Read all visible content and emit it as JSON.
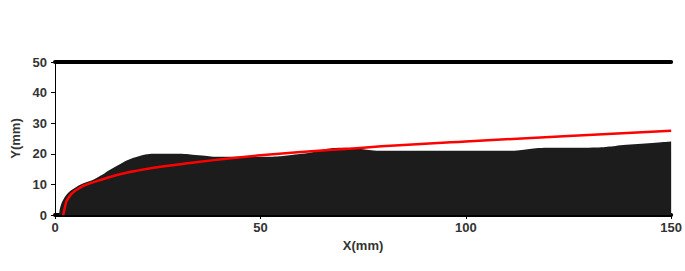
{
  "chart_data": {
    "type": "line",
    "x_label": "X(mm)",
    "y_label": "Y(mm)",
    "xlim": [
      0,
      150
    ],
    "ylim": [
      0,
      50
    ],
    "xticks": [
      0,
      50,
      100,
      150
    ],
    "yticks": [
      0,
      10,
      20,
      30,
      40,
      50
    ],
    "grid": false,
    "series": [
      {
        "type": "area",
        "color": "#1c1c1c",
        "x": [
          1,
          2,
          5,
          10,
          15,
          20,
          25,
          30,
          35,
          40,
          50,
          60,
          70,
          80,
          90,
          100,
          110,
          120,
          130,
          140,
          150
        ],
        "values": [
          0,
          5,
          9,
          12,
          16,
          19,
          20,
          20,
          19.5,
          19,
          19,
          20,
          22,
          21,
          21,
          21,
          21,
          22,
          22,
          23,
          24
        ]
      },
      {
        "type": "line",
        "color": "#ff0000",
        "x": [
          2,
          2.5,
          3,
          5,
          10,
          20,
          30,
          50,
          75,
          100,
          125,
          150
        ],
        "values": [
          0,
          3,
          5,
          8,
          11,
          14.5,
          16.5,
          19.5,
          22,
          24,
          25.8,
          27.5
        ]
      }
    ]
  }
}
